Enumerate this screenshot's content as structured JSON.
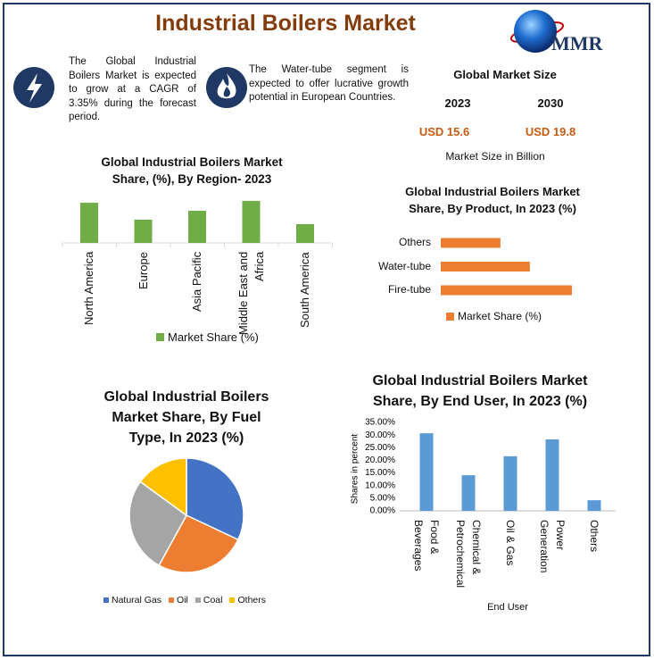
{
  "title": "Industrial Boilers Market",
  "logo": "MMR",
  "notes": [
    "The Global Industrial Boilers Market is expected to grow at a CAGR of 3.35% during the forecast period.",
    "The Water-tube segment is expected to offer lucrative growth potential in European Countries."
  ],
  "market_size": {
    "title": "Global Market Size",
    "years": [
      "2023",
      "2030"
    ],
    "values": [
      "USD 15.6",
      "USD 19.8"
    ],
    "caption": "Market Size in Billion"
  },
  "chart_data": [
    {
      "type": "bar",
      "title": "Global Industrial Boilers Market Share, (%), By Region- 2023",
      "categories": [
        "North America",
        "Europe",
        "Asia Pacific",
        "Middle East and Africa",
        "South America"
      ],
      "series": [
        {
          "name": "Market Share (%)",
          "color": "#70ad47",
          "values": [
            25.7,
            14.9,
            20.6,
            26.9,
            12
          ]
        }
      ]
    },
    {
      "type": "barh",
      "title": "Global Industrial Boilers Market Share, By Product, In 2023 (%)",
      "categories": [
        "Others",
        "Water-tube",
        "Fire-tube"
      ],
      "series": [
        {
          "name": "Market Share (%)",
          "color": "#ed7d31",
          "values": [
            21.3,
            31.8,
            46.8
          ]
        }
      ]
    },
    {
      "type": "pie",
      "title": "Global Industrial Boilers Market Share, By Fuel Type, In 2023 (%)",
      "categories": [
        "Natural Gas",
        "Oil",
        "Coal",
        "Others"
      ],
      "values": [
        32,
        26,
        27,
        15
      ],
      "colors": [
        "#4472c4",
        "#ed7d31",
        "#a5a5a5",
        "#ffc000"
      ]
    },
    {
      "type": "bar",
      "title": "Global Industrial Boilers Market Share, By End User, In 2023 (%)",
      "categories": [
        "Food & Beverages",
        "Chemical & Petrochemical",
        "Oil & Gas",
        "Power Generation",
        "Others"
      ],
      "series": [
        {
          "name": "Shares",
          "color": "#5b9bd5",
          "values": [
            30.7,
            14.1,
            21.6,
            28.3,
            4.2
          ]
        }
      ],
      "xlabel": "End User",
      "ylabel": "Shares in percent",
      "ylim": [
        0,
        35
      ],
      "yticks": [
        {
          "value": 0,
          "label": "0.00%"
        },
        {
          "value": 5,
          "label": "5.00%"
        },
        {
          "value": 10,
          "label": "10.00%"
        },
        {
          "value": 15,
          "label": "15.00%"
        },
        {
          "value": 20,
          "label": "20.00%"
        },
        {
          "value": 25,
          "label": "25.00%"
        },
        {
          "value": 30,
          "label": "30.00%"
        },
        {
          "value": 35,
          "label": "35.00%"
        }
      ]
    }
  ]
}
